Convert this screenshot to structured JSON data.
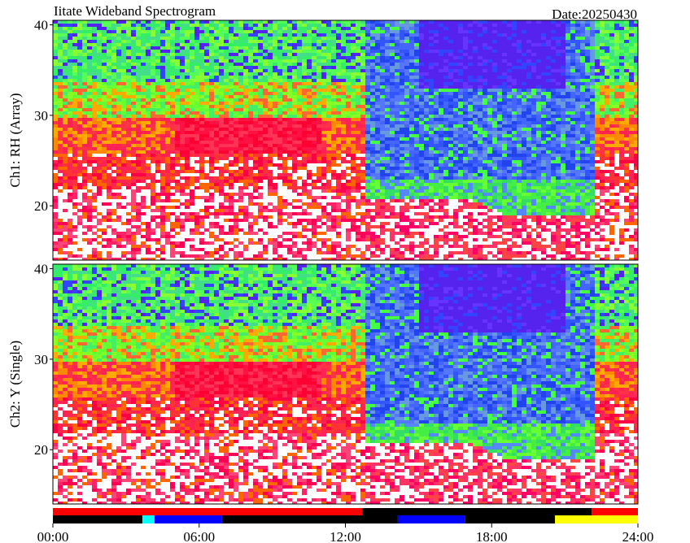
{
  "chart_data": {
    "type": "spectrogram",
    "title": "Iitate Wideband Spectrogram",
    "date_label": "Date:20250430",
    "xlim": [
      0,
      24
    ],
    "xticks": [
      {
        "value": 0,
        "label": "00:00"
      },
      {
        "value": 6,
        "label": "06:00"
      },
      {
        "value": 12,
        "label": "12:00"
      },
      {
        "value": 18,
        "label": "18:00"
      },
      {
        "value": 24,
        "label": "24:00"
      }
    ],
    "panels": [
      {
        "ylabel": "Ch1: RH (Array)",
        "ylim": [
          14,
          40.5
        ],
        "yticks": [
          20,
          30,
          40
        ]
      },
      {
        "ylabel": "Ch2: Y (Single)",
        "ylim": [
          14,
          40.5
        ],
        "yticks": [
          20,
          30,
          40
        ]
      }
    ],
    "status_rows": [
      [
        {
          "start": 0,
          "end": 12.7,
          "color": "#ff0000"
        },
        {
          "start": 12.7,
          "end": 22.1,
          "color": "#000000"
        },
        {
          "start": 22.1,
          "end": 24,
          "color": "#ff0000"
        }
      ],
      [
        {
          "start": 0,
          "end": 3.67,
          "color": "#000000"
        },
        {
          "start": 3.67,
          "end": 4.17,
          "color": "#00ffff"
        },
        {
          "start": 4.17,
          "end": 6.94,
          "color": "#0000ff"
        },
        {
          "start": 6.94,
          "end": 14.15,
          "color": "#000000"
        },
        {
          "start": 14.15,
          "end": 16.92,
          "color": "#0000ff"
        },
        {
          "start": 16.92,
          "end": 20.6,
          "color": "#000000"
        },
        {
          "start": 20.6,
          "end": 24,
          "color": "#ffff00"
        }
      ]
    ]
  }
}
